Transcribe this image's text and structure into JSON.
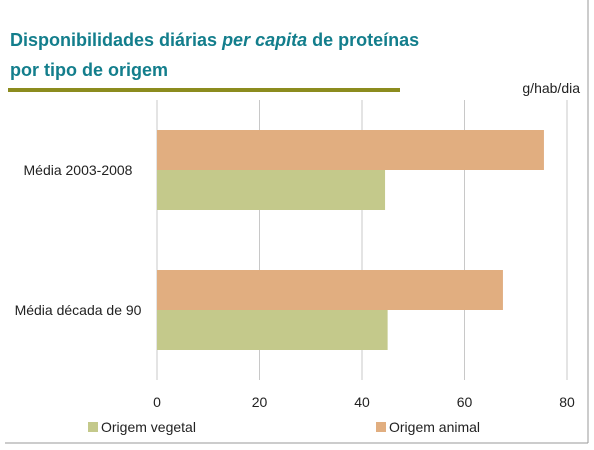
{
  "chart_data": {
    "type": "hbar",
    "title": [
      "Disponibilidades diárias",
      "per capita",
      "de proteínas",
      "por tipo de origem"
    ],
    "x_unit": "g/hab/dia",
    "categories": [
      "Média 2003-2008",
      "Média década de 90"
    ],
    "series": [
      {
        "name": "Origem vegetal",
        "color": "#c4c98b",
        "values": [
          44.5,
          45
        ]
      },
      {
        "name": "Origem animal",
        "color": "#e1ae80",
        "values": [
          75.5,
          67.5
        ]
      }
    ],
    "xlim": [
      0,
      80
    ],
    "xticks": [
      0,
      20,
      40,
      60,
      80
    ],
    "grid": true
  }
}
